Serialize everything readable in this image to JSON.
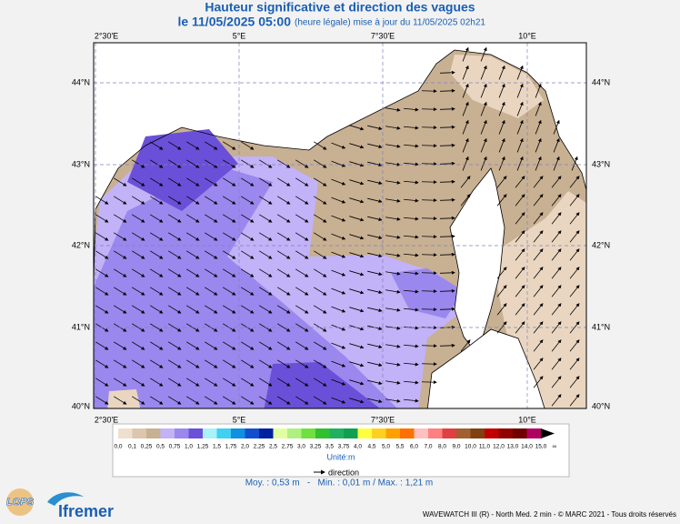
{
  "header": {
    "title": "Hauteur significative et direction des vagues",
    "date": "le 11/05/2025 05:00",
    "update": "(heure légale) mise à jour du 11/05/2025 02h21"
  },
  "map": {
    "lon_labels": [
      "2°30'E",
      "5°E",
      "7°30'E",
      "10°E"
    ],
    "lat_labels": [
      "44°N",
      "43°N",
      "42°N",
      "41°N",
      "40°N"
    ]
  },
  "legend": {
    "labels": [
      "0,0",
      "0,1",
      "0,25",
      "0,5",
      "0,75",
      "1,0",
      "1,25",
      "1,5",
      "1,75",
      "2,0",
      "2,25",
      "2,5",
      "2,75",
      "3,0",
      "3,25",
      "3,5",
      "3,75",
      "4,0",
      "4,5",
      "5,0",
      "5,5",
      "6,0",
      "7,0",
      "8,0",
      "9,0",
      "10,0",
      "11,0",
      "12,0",
      "13,0",
      "14,0",
      "15,0",
      "∞"
    ],
    "colors": [
      "#efdfcf",
      "#dcc6ae",
      "#c8b092",
      "#c2b2f8",
      "#9a88ee",
      "#6a50d8",
      "#a8f2f8",
      "#40d0f0",
      "#1090e0",
      "#1050d0",
      "#0020a0",
      "#e0ffa0",
      "#b0f080",
      "#70e040",
      "#30c030",
      "#20b060",
      "#10a050",
      "#ffff40",
      "#ffd020",
      "#ffa000",
      "#ff7000",
      "#ffc0c0",
      "#ff8080",
      "#e04040",
      "#a06030",
      "#804010",
      "#c00000",
      "#900000",
      "#700000",
      "#b00060"
    ],
    "unit": "Unité:m",
    "direction": "direction",
    "stats": "Moy. : 0,53 m   -   Min. : 0,01 m / Max. : 1,21 m"
  },
  "footer": {
    "credits": "WAVEWATCH III (R) - North Med. 2 min - © MARC 2021 - Tous droits réservés",
    "logos": [
      "LOPS",
      "Ifremer"
    ]
  }
}
